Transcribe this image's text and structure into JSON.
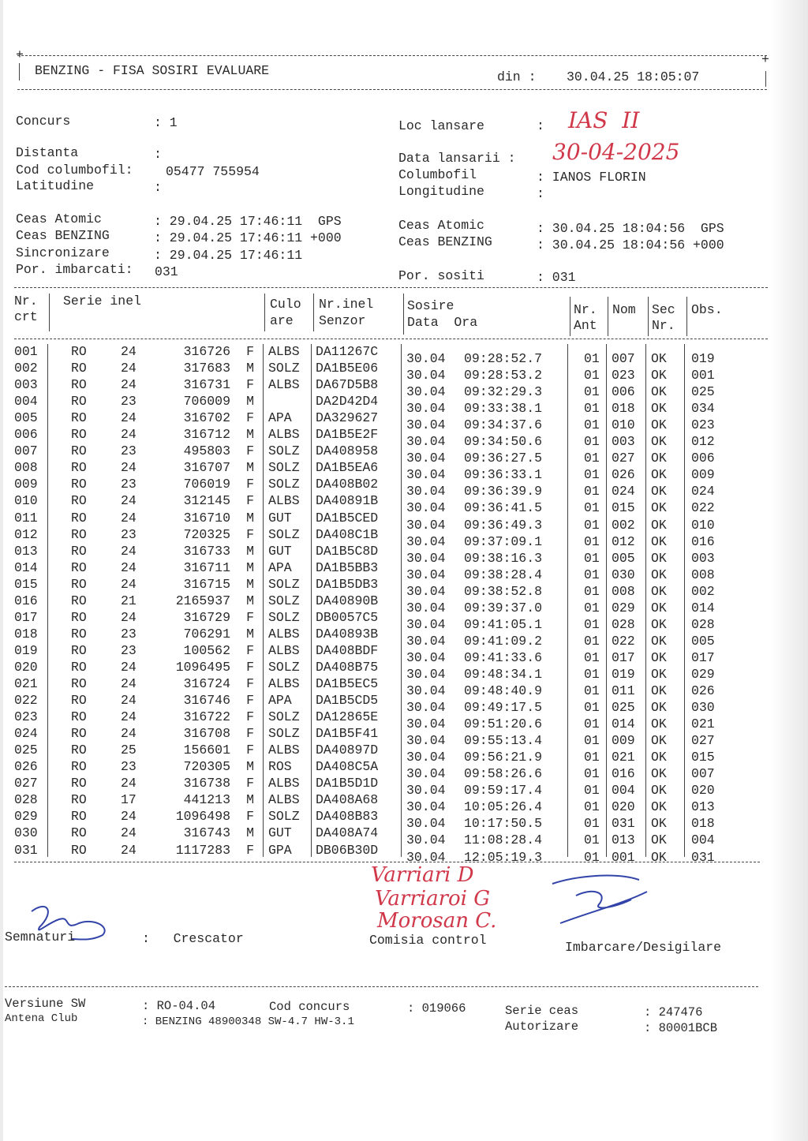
{
  "header": {
    "title": "BENZING - FISA SOSIRI EVALUARE",
    "din_label": "din :",
    "din_value": "30.04.25 18:05:07"
  },
  "info": {
    "concurs_label": "Concurs",
    "concurs_value": ": 1",
    "distanta_label": "Distanta",
    "distanta_value": ":",
    "cod_label": "Cod columbofil:",
    "cod_value": "05477 755954",
    "latitudine_label": "Latitudine",
    "latitudine_value": ":",
    "loc_label": "Loc lansare",
    "loc_value": ":",
    "data_lansarii_label": "Data lansarii :",
    "columbofil_label": "Columbofil",
    "columbofil_value": ": IANOS FLORIN",
    "longitudine_label": "Longitudine",
    "longitudine_value": ":",
    "handwritten_loc": "IAS  II",
    "handwritten_data": "30-04-2025"
  },
  "clocks": {
    "left": [
      {
        "label": "Ceas Atomic",
        "value": ": 29.04.25 17:46:11  GPS"
      },
      {
        "label": "Ceas BENZING",
        "value": ": 29.04.25 17:46:11 +000"
      },
      {
        "label": "Sincronizare",
        "value": ": 29.04.25 17:46:11"
      }
    ],
    "right": [
      {
        "label": "Ceas Atomic",
        "value": ": 30.04.25 18:04:56  GPS"
      },
      {
        "label": "Ceas BENZING",
        "value": ": 30.04.25 18:04:56 +000"
      }
    ],
    "imbarcati_label": "Por. imbarcati:",
    "imbarcati_value": "031",
    "sositi_label": "Por. sositi",
    "sositi_value": ": 031"
  },
  "table": {
    "headers": {
      "nr1": "Nr.",
      "nr2": "crt",
      "serie": "Serie inel",
      "culo1": "Culo",
      "culo2": "are",
      "senz1": "Nr.inel",
      "senz2": "Senzor",
      "sos1": "Sosire",
      "sos2": "Data  Ora",
      "ant1": "Nr.",
      "ant2": "Ant",
      "nom": "Nom",
      "sec1": "Sec",
      "sec2": "Nr.",
      "obs": "Obs."
    },
    "rows": [
      {
        "nr": "001",
        "tara": "RO",
        "an": "24",
        "inel": "316726",
        "sex": "F",
        "culoare": "ALBS",
        "senzor": "DA11267C",
        "data": "30.04",
        "ora": "09:28:52.7",
        "ant": "01",
        "nom": "007",
        "sec": "OK",
        "obs": "019"
      },
      {
        "nr": "002",
        "tara": "RO",
        "an": "24",
        "inel": "317683",
        "sex": "M",
        "culoare": "SOLZ",
        "senzor": "DA1B5E06",
        "data": "30.04",
        "ora": "09:28:53.2",
        "ant": "01",
        "nom": "023",
        "sec": "OK",
        "obs": "001"
      },
      {
        "nr": "003",
        "tara": "RO",
        "an": "24",
        "inel": "316731",
        "sex": "F",
        "culoare": "ALBS",
        "senzor": "DA67D5B8",
        "data": "30.04",
        "ora": "09:32:29.3",
        "ant": "01",
        "nom": "006",
        "sec": "OK",
        "obs": "025"
      },
      {
        "nr": "004",
        "tara": "RO",
        "an": "23",
        "inel": "706009",
        "sex": "M",
        "culoare": "",
        "senzor": "DA2D42D4",
        "data": "30.04",
        "ora": "09:33:38.1",
        "ant": "01",
        "nom": "018",
        "sec": "OK",
        "obs": "034"
      },
      {
        "nr": "005",
        "tara": "RO",
        "an": "24",
        "inel": "316702",
        "sex": "F",
        "culoare": "APA",
        "senzor": "DA329627",
        "data": "30.04",
        "ora": "09:34:37.6",
        "ant": "01",
        "nom": "010",
        "sec": "OK",
        "obs": "023"
      },
      {
        "nr": "006",
        "tara": "RO",
        "an": "24",
        "inel": "316712",
        "sex": "M",
        "culoare": "ALBS",
        "senzor": "DA1B5E2F",
        "data": "30.04",
        "ora": "09:34:50.6",
        "ant": "01",
        "nom": "003",
        "sec": "OK",
        "obs": "012"
      },
      {
        "nr": "007",
        "tara": "RO",
        "an": "23",
        "inel": "495803",
        "sex": "F",
        "culoare": "SOLZ",
        "senzor": "DA408958",
        "data": "30.04",
        "ora": "09:36:27.5",
        "ant": "01",
        "nom": "027",
        "sec": "OK",
        "obs": "006"
      },
      {
        "nr": "008",
        "tara": "RO",
        "an": "24",
        "inel": "316707",
        "sex": "M",
        "culoare": "SOLZ",
        "senzor": "DA1B5EA6",
        "data": "30.04",
        "ora": "09:36:33.1",
        "ant": "01",
        "nom": "026",
        "sec": "OK",
        "obs": "009"
      },
      {
        "nr": "009",
        "tara": "RO",
        "an": "23",
        "inel": "706019",
        "sex": "F",
        "culoare": "SOLZ",
        "senzor": "DA408B02",
        "data": "30.04",
        "ora": "09:36:39.9",
        "ant": "01",
        "nom": "024",
        "sec": "OK",
        "obs": "024"
      },
      {
        "nr": "010",
        "tara": "RO",
        "an": "24",
        "inel": "312145",
        "sex": "F",
        "culoare": "ALBS",
        "senzor": "DA40891B",
        "data": "30.04",
        "ora": "09:36:41.5",
        "ant": "01",
        "nom": "015",
        "sec": "OK",
        "obs": "022"
      },
      {
        "nr": "011",
        "tara": "RO",
        "an": "24",
        "inel": "316710",
        "sex": "M",
        "culoare": "GUT",
        "senzor": "DA1B5CED",
        "data": "30.04",
        "ora": "09:36:49.3",
        "ant": "01",
        "nom": "002",
        "sec": "OK",
        "obs": "010"
      },
      {
        "nr": "012",
        "tara": "RO",
        "an": "23",
        "inel": "720325",
        "sex": "F",
        "culoare": "SOLZ",
        "senzor": "DA408C1B",
        "data": "30.04",
        "ora": "09:37:09.1",
        "ant": "01",
        "nom": "012",
        "sec": "OK",
        "obs": "016"
      },
      {
        "nr": "013",
        "tara": "RO",
        "an": "24",
        "inel": "316733",
        "sex": "M",
        "culoare": "GUT",
        "senzor": "DA1B5C8D",
        "data": "30.04",
        "ora": "09:38:16.3",
        "ant": "01",
        "nom": "005",
        "sec": "OK",
        "obs": "003"
      },
      {
        "nr": "014",
        "tara": "RO",
        "an": "24",
        "inel": "316711",
        "sex": "M",
        "culoare": "APA",
        "senzor": "DA1B5BB3",
        "data": "30.04",
        "ora": "09:38:28.4",
        "ant": "01",
        "nom": "030",
        "sec": "OK",
        "obs": "008"
      },
      {
        "nr": "015",
        "tara": "RO",
        "an": "24",
        "inel": "316715",
        "sex": "M",
        "culoare": "SOLZ",
        "senzor": "DA1B5DB3",
        "data": "30.04",
        "ora": "09:38:52.8",
        "ant": "01",
        "nom": "008",
        "sec": "OK",
        "obs": "002"
      },
      {
        "nr": "016",
        "tara": "RO",
        "an": "21",
        "inel": "2165937",
        "sex": "M",
        "culoare": "SOLZ",
        "senzor": "DA40890B",
        "data": "30.04",
        "ora": "09:39:37.0",
        "ant": "01",
        "nom": "029",
        "sec": "OK",
        "obs": "014"
      },
      {
        "nr": "017",
        "tara": "RO",
        "an": "24",
        "inel": "316729",
        "sex": "F",
        "culoare": "SOLZ",
        "senzor": "DB0057C5",
        "data": "30.04",
        "ora": "09:41:05.1",
        "ant": "01",
        "nom": "028",
        "sec": "OK",
        "obs": "028"
      },
      {
        "nr": "018",
        "tara": "RO",
        "an": "23",
        "inel": "706291",
        "sex": "M",
        "culoare": "ALBS",
        "senzor": "DA40893B",
        "data": "30.04",
        "ora": "09:41:09.2",
        "ant": "01",
        "nom": "022",
        "sec": "OK",
        "obs": "005"
      },
      {
        "nr": "019",
        "tara": "RO",
        "an": "23",
        "inel": "100562",
        "sex": "F",
        "culoare": "ALBS",
        "senzor": "DA408BDF",
        "data": "30.04",
        "ora": "09:41:33.6",
        "ant": "01",
        "nom": "017",
        "sec": "OK",
        "obs": "017"
      },
      {
        "nr": "020",
        "tara": "RO",
        "an": "24",
        "inel": "1096495",
        "sex": "F",
        "culoare": "SOLZ",
        "senzor": "DA408B75",
        "data": "30.04",
        "ora": "09:48:34.1",
        "ant": "01",
        "nom": "019",
        "sec": "OK",
        "obs": "029"
      },
      {
        "nr": "021",
        "tara": "RO",
        "an": "24",
        "inel": "316724",
        "sex": "F",
        "culoare": "ALBS",
        "senzor": "DA1B5EC5",
        "data": "30.04",
        "ora": "09:48:40.9",
        "ant": "01",
        "nom": "011",
        "sec": "OK",
        "obs": "026"
      },
      {
        "nr": "022",
        "tara": "RO",
        "an": "24",
        "inel": "316746",
        "sex": "F",
        "culoare": "APA",
        "senzor": "DA1B5CD5",
        "data": "30.04",
        "ora": "09:49:17.5",
        "ant": "01",
        "nom": "025",
        "sec": "OK",
        "obs": "030"
      },
      {
        "nr": "023",
        "tara": "RO",
        "an": "24",
        "inel": "316722",
        "sex": "F",
        "culoare": "SOLZ",
        "senzor": "DA12865E",
        "data": "30.04",
        "ora": "09:51:20.6",
        "ant": "01",
        "nom": "014",
        "sec": "OK",
        "obs": "021"
      },
      {
        "nr": "024",
        "tara": "RO",
        "an": "24",
        "inel": "316708",
        "sex": "F",
        "culoare": "SOLZ",
        "senzor": "DA1B5F41",
        "data": "30.04",
        "ora": "09:55:13.4",
        "ant": "01",
        "nom": "009",
        "sec": "OK",
        "obs": "027"
      },
      {
        "nr": "025",
        "tara": "RO",
        "an": "25",
        "inel": "156601",
        "sex": "F",
        "culoare": "ALBS",
        "senzor": "DA40897D",
        "data": "30.04",
        "ora": "09:56:21.9",
        "ant": "01",
        "nom": "021",
        "sec": "OK",
        "obs": "015"
      },
      {
        "nr": "026",
        "tara": "RO",
        "an": "23",
        "inel": "720305",
        "sex": "M",
        "culoare": "ROS",
        "senzor": "DA408C5A",
        "data": "30.04",
        "ora": "09:58:26.6",
        "ant": "01",
        "nom": "016",
        "sec": "OK",
        "obs": "007"
      },
      {
        "nr": "027",
        "tara": "RO",
        "an": "24",
        "inel": "316738",
        "sex": "F",
        "culoare": "ALBS",
        "senzor": "DA1B5D1D",
        "data": "30.04",
        "ora": "09:59:17.4",
        "ant": "01",
        "nom": "004",
        "sec": "OK",
        "obs": "020"
      },
      {
        "nr": "028",
        "tara": "RO",
        "an": "17",
        "inel": "441213",
        "sex": "M",
        "culoare": "ALBS",
        "senzor": "DA408A68",
        "data": "30.04",
        "ora": "10:05:26.4",
        "ant": "01",
        "nom": "020",
        "sec": "OK",
        "obs": "013"
      },
      {
        "nr": "029",
        "tara": "RO",
        "an": "24",
        "inel": "1096498",
        "sex": "F",
        "culoare": "SOLZ",
        "senzor": "DA408B83",
        "data": "30.04",
        "ora": "10:17:50.5",
        "ant": "01",
        "nom": "031",
        "sec": "OK",
        "obs": "018"
      },
      {
        "nr": "030",
        "tara": "RO",
        "an": "24",
        "inel": "316743",
        "sex": "M",
        "culoare": "GUT",
        "senzor": "DA408A74",
        "data": "30.04",
        "ora": "11:08:28.4",
        "ant": "01",
        "nom": "013",
        "sec": "OK",
        "obs": "004"
      },
      {
        "nr": "031",
        "tara": "RO",
        "an": "24",
        "inel": "1117283",
        "sex": "F",
        "culoare": "GPA",
        "senzor": "DB06B30D",
        "data": "30.04",
        "ora": "12:05:19.3",
        "ant": "01",
        "nom": "001",
        "sec": "OK",
        "obs": "031"
      }
    ]
  },
  "signatures": {
    "semnaturi_label": "Semnaturi",
    "crescator_label": ":   Crescator",
    "comisia_label": "Comisia control",
    "imbarcare_label": "Imbarcare/Desigilare",
    "handwritten_1": "Varriari D",
    "handwritten_2": "Varriaroi G",
    "handwritten_3": "Morosan C."
  },
  "footer": {
    "versiune_label": "Versiune SW",
    "versiune_value": ": RO-04.04",
    "cod_concurs_label": "Cod concurs",
    "cod_concurs_value": ": 019066",
    "serie_ceas_label": "Serie ceas",
    "serie_ceas_value": ": 247476",
    "antena_label": "Antena Club",
    "antena_value": ": BENZING 48900348 SW-4.7 HW-3.1",
    "autorizare_label": "Autorizare",
    "autorizare_value": ": 80001BCB"
  },
  "colors": {
    "ink": "#2a2a2a",
    "handwriting_red": "#d0384a",
    "handwriting_blue": "#3344a8"
  }
}
